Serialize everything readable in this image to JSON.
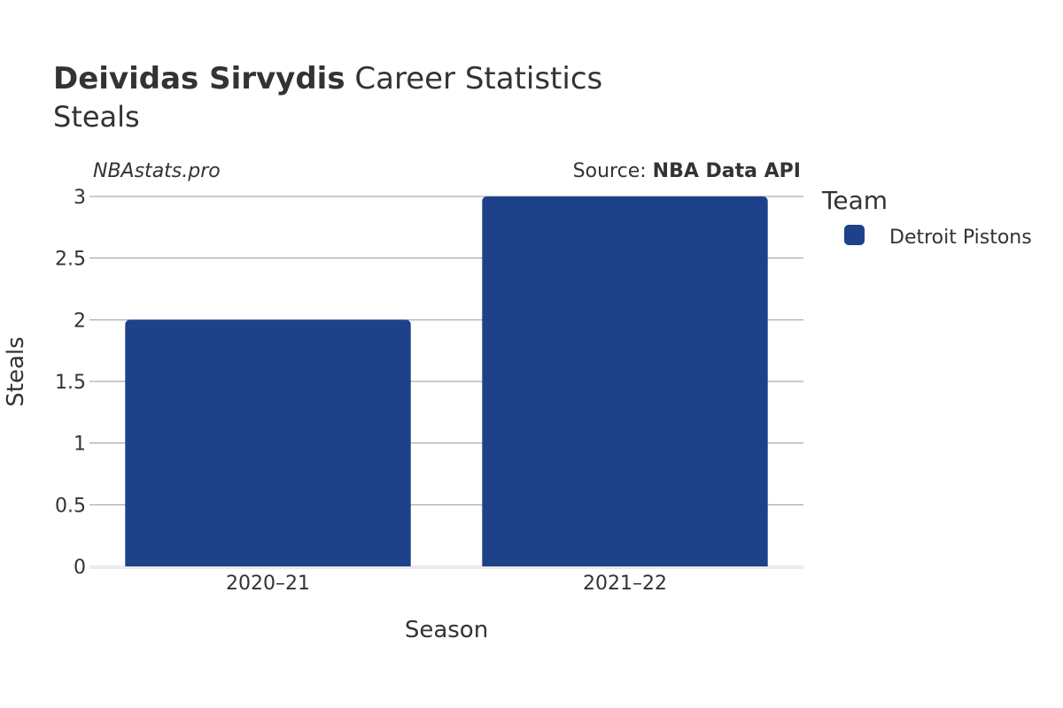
{
  "title": {
    "name": "Deividas Sirvydis",
    "suffix": "Career Statistics",
    "subtitle": "Steals"
  },
  "watermark": "NBAstats.pro",
  "source": {
    "prefix": "Source:",
    "name": "NBA Data API"
  },
  "legend": {
    "title": "Team",
    "placement": "right-top"
  },
  "chart_data": {
    "type": "bar",
    "categories": [
      "2020–21",
      "2021–22"
    ],
    "series": [
      {
        "name": "Detroit Pistons",
        "color": "#1d428a",
        "values": [
          2,
          3
        ]
      }
    ],
    "xlabel": "Season",
    "ylabel": "Steals",
    "ylim": [
      0,
      3
    ],
    "yticks": [
      "0",
      "0.5",
      "1",
      "1.5",
      "2",
      "2.5",
      "3"
    ],
    "grid": true
  }
}
